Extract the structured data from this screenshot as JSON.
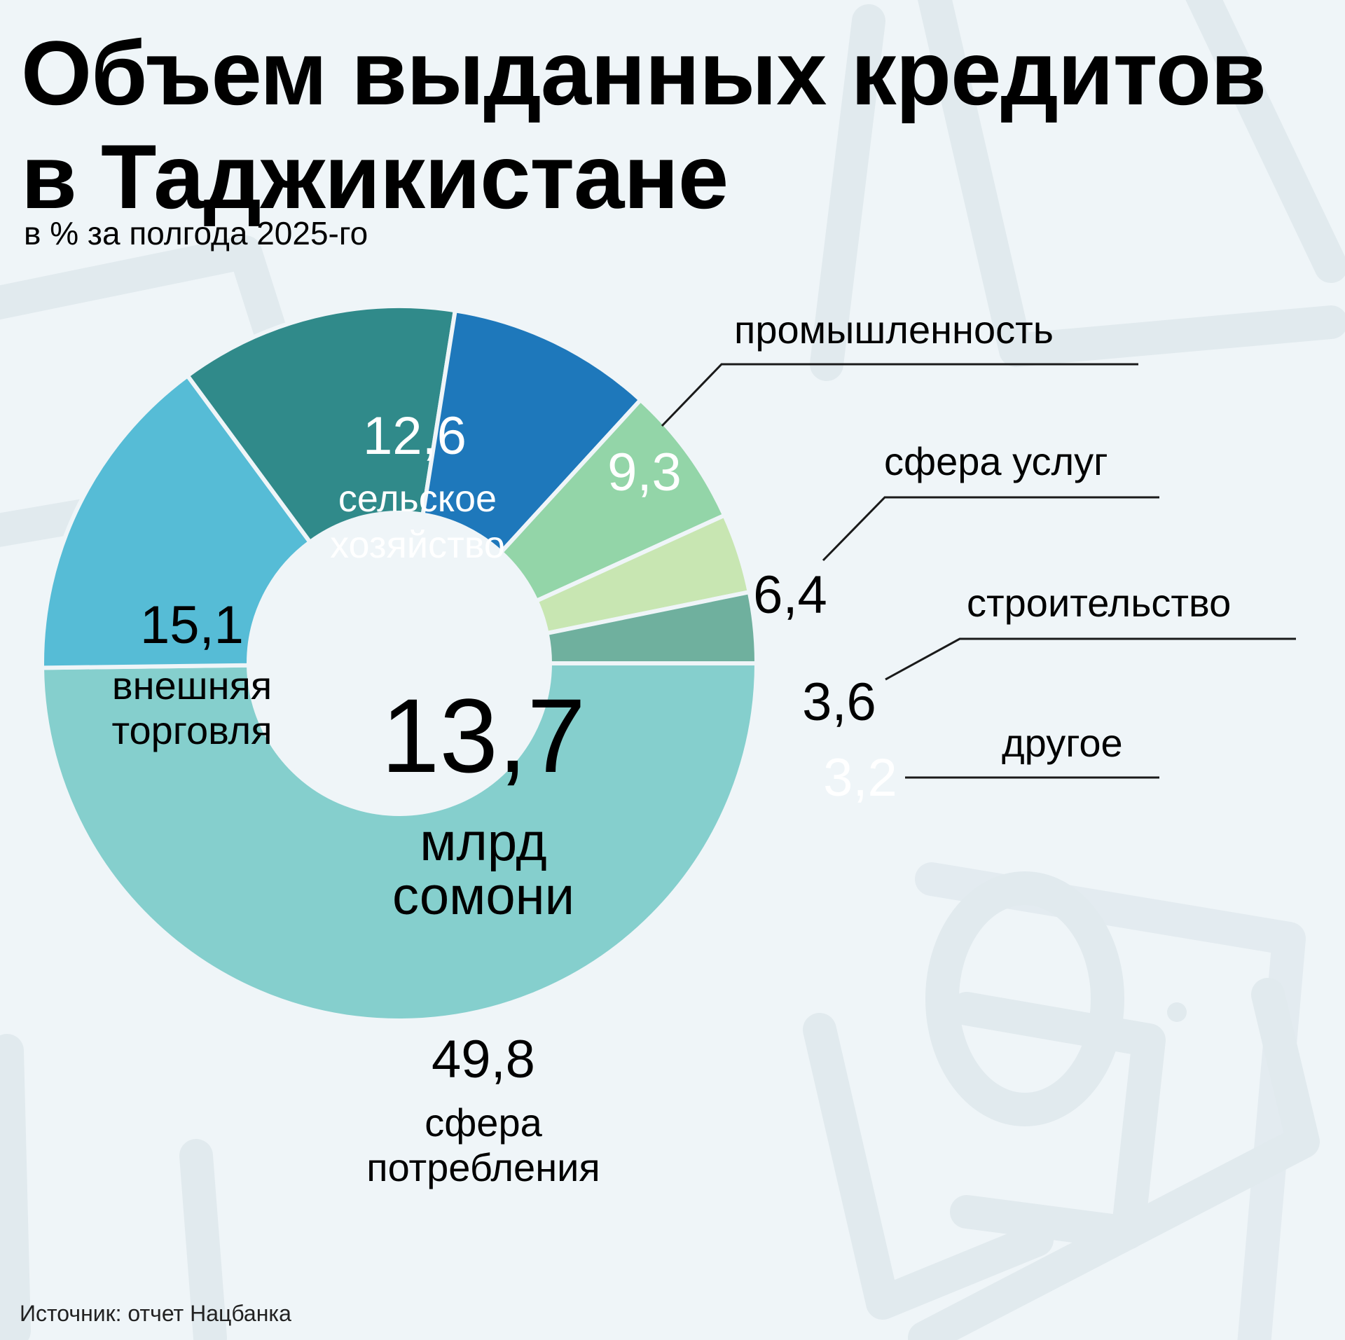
{
  "header": {
    "title_line1": "Объем выданных кредитов",
    "title_line2": "в Таджикистане",
    "subtitle": "в % за полгода 2025-го"
  },
  "center": {
    "total": "13,7",
    "unit_line1": "млрд",
    "unit_line2": "сомони"
  },
  "labels": {
    "consumer_value": "49,8",
    "consumer_l1": "сфера",
    "consumer_l2": "потребления",
    "trade_value": "15,1",
    "trade_l1": "внешняя",
    "trade_l2": "торговля",
    "agri_value": "12,6",
    "agri_l1": "сельское",
    "agri_l2": "хозяйство",
    "industry_value": "9,3",
    "industry_name": "промышленность",
    "services_value": "6,4",
    "services_name": "сфера услуг",
    "construction_value": "3,6",
    "construction_name": "строительство",
    "other_value": "3,2",
    "other_name": "другое"
  },
  "footer": {
    "source": "Источник: отчет Нацбанка"
  },
  "colors": {
    "background": "#eff5f8",
    "consumer": "#85cfcd",
    "trade": "#56bcd6",
    "agriculture": "#308a8a",
    "industry": "#1e78bb",
    "services": "#93d5a8",
    "construction": "#c8e6b2",
    "other": "#6fb09e"
  },
  "chart_data": {
    "type": "pie",
    "subtype": "donut",
    "title": "Объем выданных кредитов в Таджикистане",
    "subtitle": "в % за полгода 2025-го",
    "center_label": "13,7 млрд сомони",
    "total": 13.7,
    "total_unit": "млрд сомони",
    "categories": [
      "сфера потребления",
      "внешняя торговля",
      "сельское хозяйство",
      "промышленность",
      "сфера услуг",
      "строительство",
      "другое"
    ],
    "values": [
      49.8,
      15.1,
      12.6,
      9.3,
      6.4,
      3.6,
      3.2
    ],
    "unit": "%",
    "source": "Источник: отчет Нацбанка"
  }
}
